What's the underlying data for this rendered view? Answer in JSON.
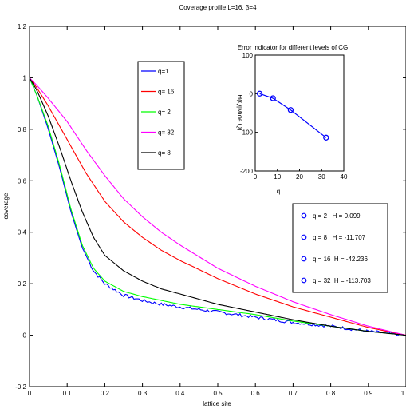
{
  "chart_data": [
    {
      "id": "main",
      "type": "line",
      "title": "Coverage profile L=16, β=4",
      "xlabel": "lattice site",
      "ylabel": "coverage",
      "xlim": [
        0,
        1
      ],
      "ylim": [
        -0.2,
        1.2
      ],
      "xticks": [
        "0",
        "0.1",
        "0.2",
        "0.3",
        "0.4",
        "0.5",
        "0.6",
        "0.7",
        "0.8",
        "0.9",
        "1"
      ],
      "yticks": [
        "-0.2",
        "0",
        "0.2",
        "0.4",
        "0.6",
        "0.8",
        "1",
        "1.2"
      ],
      "grid": false,
      "legend_position": "upper-left-inside",
      "series": [
        {
          "name": "q=1",
          "color": "#0000ff",
          "noisy": true,
          "x": [
            0,
            0.02,
            0.05,
            0.08,
            0.11,
            0.14,
            0.17,
            0.2,
            0.25,
            0.3,
            0.35,
            0.4,
            0.5,
            0.6,
            0.7,
            0.8,
            0.9,
            1.0
          ],
          "y": [
            1.0,
            0.93,
            0.8,
            0.65,
            0.48,
            0.34,
            0.25,
            0.2,
            0.155,
            0.135,
            0.12,
            0.11,
            0.09,
            0.07,
            0.05,
            0.035,
            0.015,
            0.0
          ]
        },
        {
          "name": "q= 16",
          "color": "#ff0000",
          "x": [
            0,
            0.02,
            0.05,
            0.1,
            0.15,
            0.2,
            0.25,
            0.3,
            0.35,
            0.4,
            0.5,
            0.6,
            0.7,
            0.8,
            0.9,
            1.0
          ],
          "y": [
            1.0,
            0.96,
            0.89,
            0.76,
            0.63,
            0.52,
            0.44,
            0.38,
            0.33,
            0.29,
            0.22,
            0.16,
            0.11,
            0.07,
            0.03,
            0.0
          ]
        },
        {
          "name": "q= 2",
          "color": "#00ff00",
          "x": [
            0,
            0.02,
            0.05,
            0.08,
            0.11,
            0.14,
            0.17,
            0.2,
            0.25,
            0.3,
            0.35,
            0.4,
            0.5,
            0.6,
            0.7,
            0.8,
            0.9,
            1.0
          ],
          "y": [
            1.0,
            0.93,
            0.81,
            0.66,
            0.49,
            0.35,
            0.26,
            0.21,
            0.17,
            0.15,
            0.135,
            0.12,
            0.1,
            0.08,
            0.055,
            0.035,
            0.015,
            0.0
          ]
        },
        {
          "name": "q= 32",
          "color": "#ff00ff",
          "x": [
            0,
            0.02,
            0.05,
            0.1,
            0.15,
            0.2,
            0.25,
            0.3,
            0.35,
            0.4,
            0.5,
            0.6,
            0.7,
            0.8,
            0.9,
            1.0
          ],
          "y": [
            1.0,
            0.97,
            0.92,
            0.83,
            0.72,
            0.62,
            0.53,
            0.46,
            0.4,
            0.35,
            0.26,
            0.19,
            0.13,
            0.08,
            0.035,
            0.0
          ]
        },
        {
          "name": "q= 8",
          "color": "#000000",
          "x": [
            0,
            0.02,
            0.05,
            0.08,
            0.11,
            0.14,
            0.17,
            0.2,
            0.25,
            0.3,
            0.35,
            0.4,
            0.5,
            0.6,
            0.7,
            0.8,
            0.9,
            1.0
          ],
          "y": [
            1.0,
            0.95,
            0.85,
            0.73,
            0.6,
            0.48,
            0.38,
            0.31,
            0.25,
            0.21,
            0.18,
            0.16,
            0.12,
            0.09,
            0.06,
            0.035,
            0.015,
            0.0
          ]
        }
      ]
    },
    {
      "id": "inset",
      "type": "line",
      "title": "Error indicator for different levels of CG",
      "xlabel": "q",
      "ylabel": "H(Q|Mide Q)",
      "xlim": [
        0,
        40
      ],
      "ylim": [
        -200,
        100
      ],
      "xticks": [
        "0",
        "10",
        "20",
        "30",
        "40"
      ],
      "yticks": [
        "100",
        "0",
        "-100",
        "-200"
      ],
      "series": [
        {
          "name": "",
          "color": "#0000ff",
          "marker": "circle",
          "x": [
            2,
            8,
            16,
            32
          ],
          "y": [
            0.099,
            -11.707,
            -42.236,
            -113.703
          ]
        }
      ],
      "legend_entries": [
        "q = 2   H = 0.099",
        "q = 8   H = -11.707",
        "q = 16  H = -42.236",
        "q = 32  H = -113.703"
      ]
    }
  ]
}
